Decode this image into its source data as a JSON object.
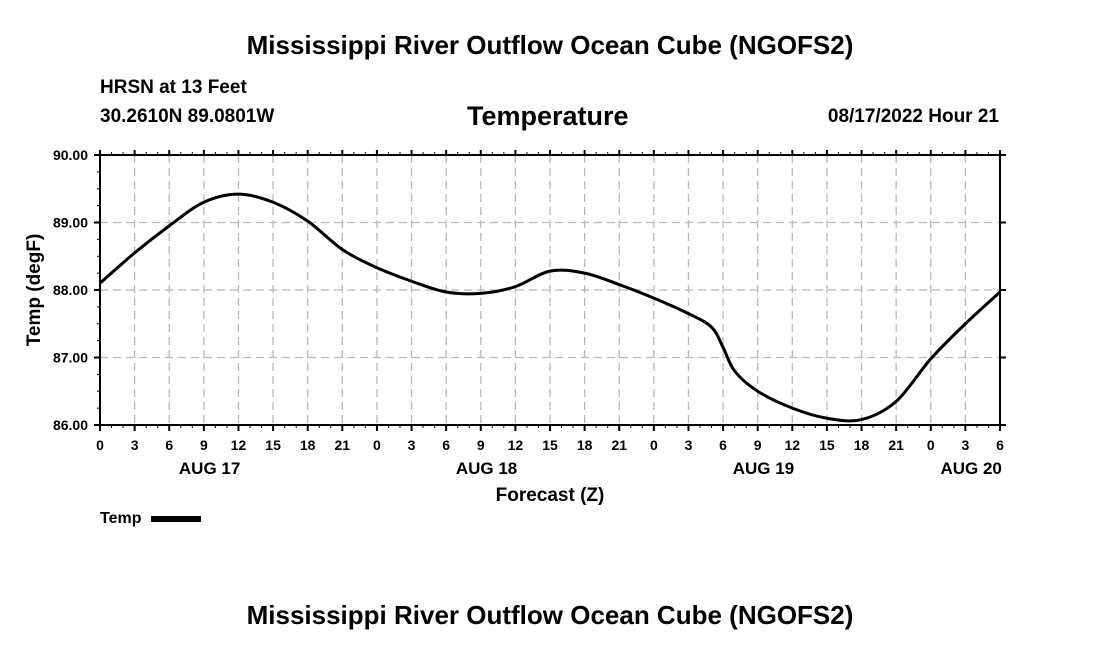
{
  "header": {
    "main_title": "Mississippi River Outflow Ocean Cube (NGOFS2)",
    "station": "HRSN at 13 Feet",
    "coordinates": "30.2610N  89.0801W",
    "subtitle": "Temperature",
    "datetime": "08/17/2022 Hour 21"
  },
  "footer": {
    "main_title": "Mississippi River Outflow Ocean Cube (NGOFS2)"
  },
  "legend": {
    "label": "Temp",
    "color": "#000000"
  },
  "chart_data": {
    "type": "line",
    "title": "Temperature",
    "xlabel": "Forecast (Z)",
    "ylabel": "Temp (degF)",
    "x_unit": "hours from 08/17/2022 00Z",
    "xlim": [
      0,
      78
    ],
    "ylim": [
      86,
      90
    ],
    "y_ticks": [
      "86.00",
      "87.00",
      "88.00",
      "89.00",
      "90.00"
    ],
    "x_ticks": [
      {
        "hour": 0,
        "label": "0"
      },
      {
        "hour": 3,
        "label": "3"
      },
      {
        "hour": 6,
        "label": "6"
      },
      {
        "hour": 9,
        "label": "9"
      },
      {
        "hour": 12,
        "label": "12"
      },
      {
        "hour": 15,
        "label": "15"
      },
      {
        "hour": 18,
        "label": "18"
      },
      {
        "hour": 21,
        "label": "21"
      },
      {
        "hour": 24,
        "label": "0"
      },
      {
        "hour": 27,
        "label": "3"
      },
      {
        "hour": 30,
        "label": "6"
      },
      {
        "hour": 33,
        "label": "9"
      },
      {
        "hour": 36,
        "label": "12"
      },
      {
        "hour": 39,
        "label": "15"
      },
      {
        "hour": 42,
        "label": "18"
      },
      {
        "hour": 45,
        "label": "21"
      },
      {
        "hour": 48,
        "label": "0"
      },
      {
        "hour": 51,
        "label": "3"
      },
      {
        "hour": 54,
        "label": "6"
      },
      {
        "hour": 57,
        "label": "9"
      },
      {
        "hour": 60,
        "label": "12"
      },
      {
        "hour": 63,
        "label": "15"
      },
      {
        "hour": 66,
        "label": "18"
      },
      {
        "hour": 69,
        "label": "21"
      },
      {
        "hour": 72,
        "label": "0"
      },
      {
        "hour": 75,
        "label": "3"
      },
      {
        "hour": 78,
        "label": "6"
      }
    ],
    "day_labels": [
      {
        "hour": 9.5,
        "label": "AUG 17"
      },
      {
        "hour": 33.5,
        "label": "AUG 18"
      },
      {
        "hour": 57.5,
        "label": "AUG 19"
      },
      {
        "hour": 75.5,
        "label": "AUG 20"
      }
    ],
    "series": [
      {
        "name": "Temp",
        "color": "#000000",
        "x": [
          0,
          3,
          6,
          9,
          12,
          15,
          18,
          21,
          24,
          27,
          30,
          33,
          36,
          39,
          42,
          45,
          48,
          51,
          53,
          54,
          55,
          57,
          60,
          63,
          66,
          69,
          72,
          75,
          78
        ],
        "values": [
          88.1,
          88.55,
          88.95,
          89.3,
          89.42,
          89.3,
          89.02,
          88.6,
          88.33,
          88.13,
          87.97,
          87.95,
          88.05,
          88.28,
          88.25,
          88.08,
          87.88,
          87.65,
          87.45,
          87.15,
          86.8,
          86.5,
          86.25,
          86.1,
          86.08,
          86.35,
          86.98,
          87.5,
          87.97
        ]
      }
    ]
  }
}
